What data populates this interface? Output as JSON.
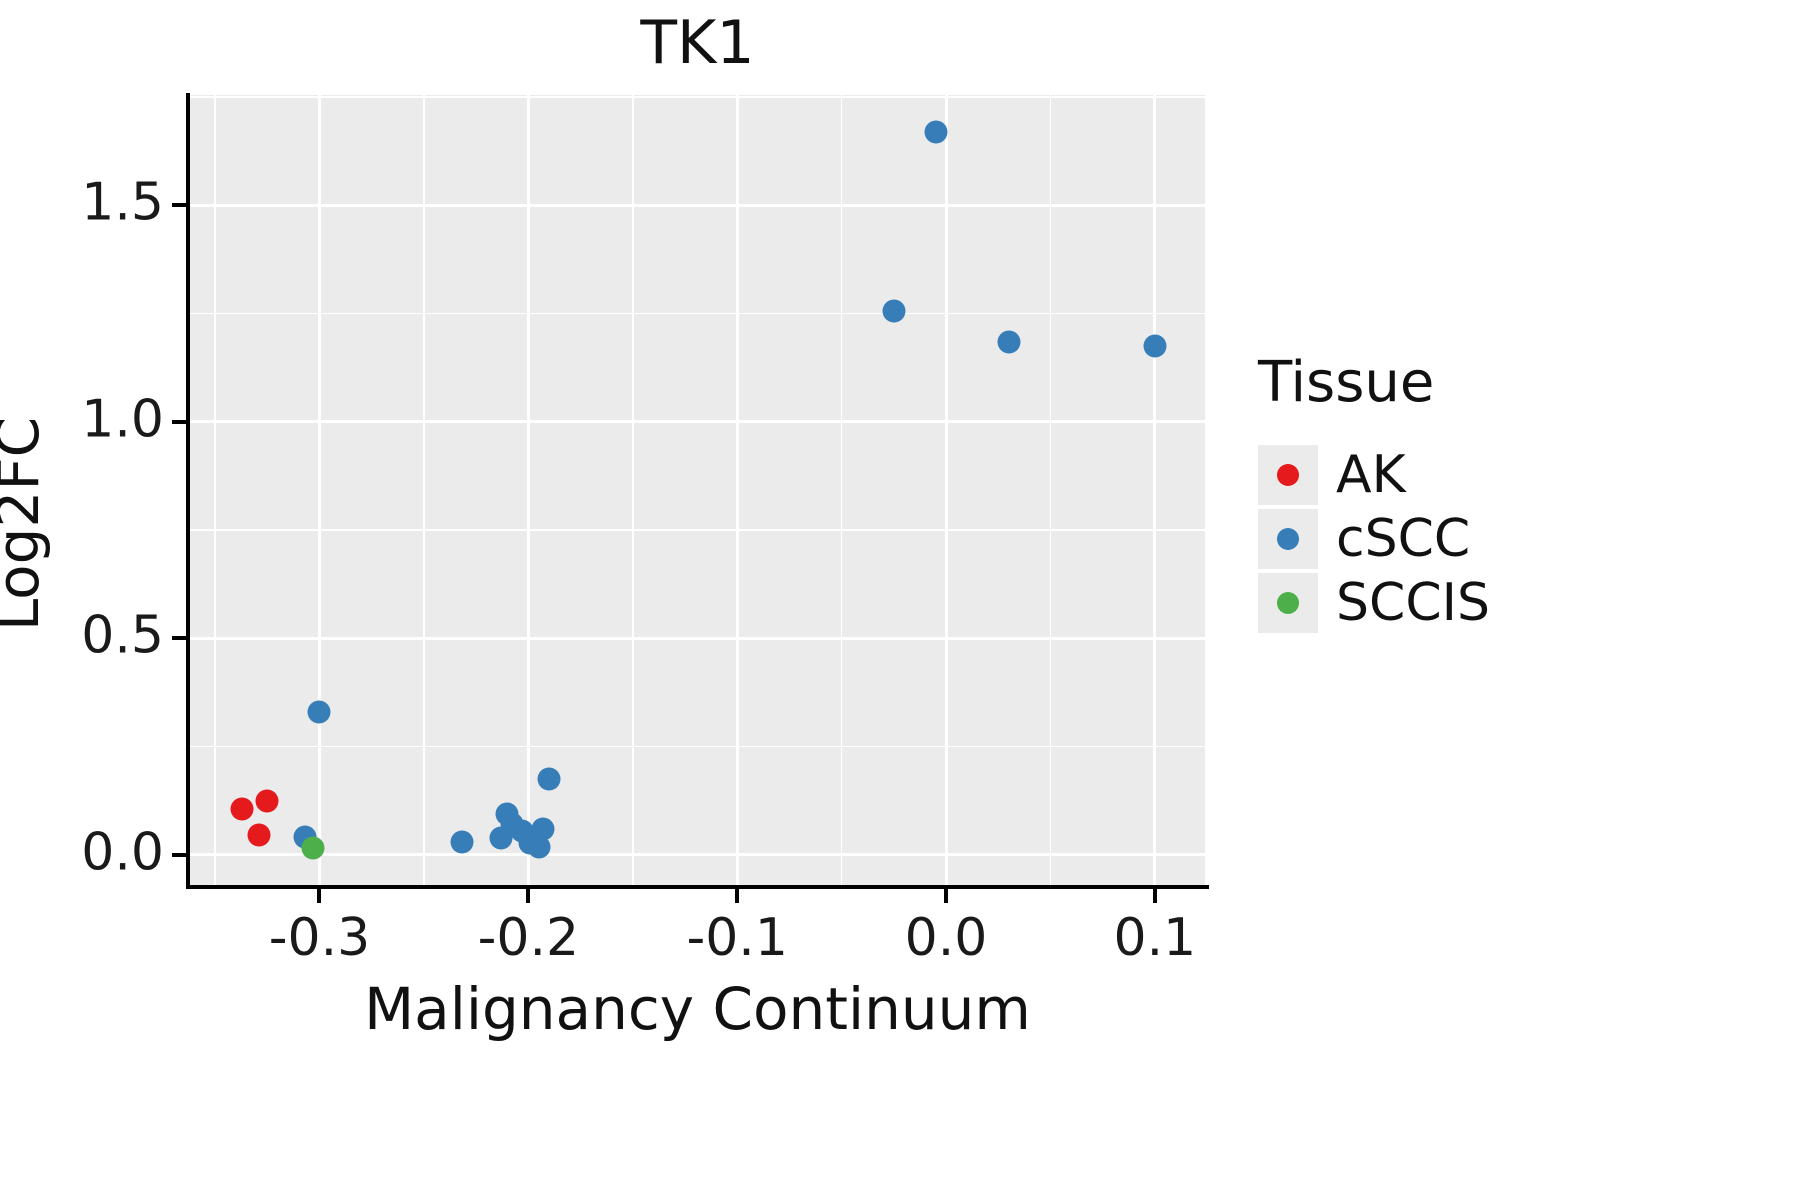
{
  "chart_data": {
    "type": "scatter",
    "title": "TK1",
    "xlabel": "Malignancy Continuum",
    "ylabel": "Log2FC",
    "xlim": [
      -0.362,
      0.124
    ],
    "ylim": [
      -0.07,
      1.755
    ],
    "x_ticks": [
      -0.3,
      -0.2,
      -0.1,
      0.0,
      0.1
    ],
    "x_tick_labels": [
      "-0.3",
      "-0.2",
      "-0.1",
      "0.0",
      "0.1"
    ],
    "y_ticks": [
      0.0,
      0.5,
      1.0,
      1.5
    ],
    "y_tick_labels": [
      "0.0",
      "0.5",
      "1.0",
      "1.5"
    ],
    "x_minor_ticks": [
      -0.35,
      -0.25,
      -0.15,
      -0.05,
      0.05
    ],
    "y_minor_ticks": [
      0.25,
      0.75,
      1.25,
      1.75
    ],
    "grid": true,
    "panel_background": "#EBEBEB",
    "grid_color": "#FFFFFF",
    "legend": {
      "title": "Tissue",
      "position": "right"
    },
    "series": [
      {
        "name": "AK",
        "color": "#E41A1C",
        "points": [
          [
            -0.337,
            0.105
          ],
          [
            -0.325,
            0.125
          ],
          [
            -0.329,
            0.045
          ]
        ]
      },
      {
        "name": "cSCC",
        "color": "#377EB8",
        "points": [
          [
            -0.005,
            1.67
          ],
          [
            -0.025,
            1.255
          ],
          [
            0.03,
            1.185
          ],
          [
            0.1,
            1.175
          ],
          [
            -0.3,
            0.33
          ],
          [
            -0.307,
            0.04
          ],
          [
            -0.232,
            0.03
          ],
          [
            -0.21,
            0.095
          ],
          [
            -0.208,
            0.07
          ],
          [
            -0.213,
            0.038
          ],
          [
            -0.203,
            0.055
          ],
          [
            -0.199,
            0.028
          ],
          [
            -0.193,
            0.06
          ],
          [
            -0.195,
            0.018
          ],
          [
            -0.19,
            0.175
          ]
        ]
      },
      {
        "name": "SCCIS",
        "color": "#4DAF4A",
        "points": [
          [
            -0.303,
            0.015
          ]
        ]
      }
    ]
  }
}
